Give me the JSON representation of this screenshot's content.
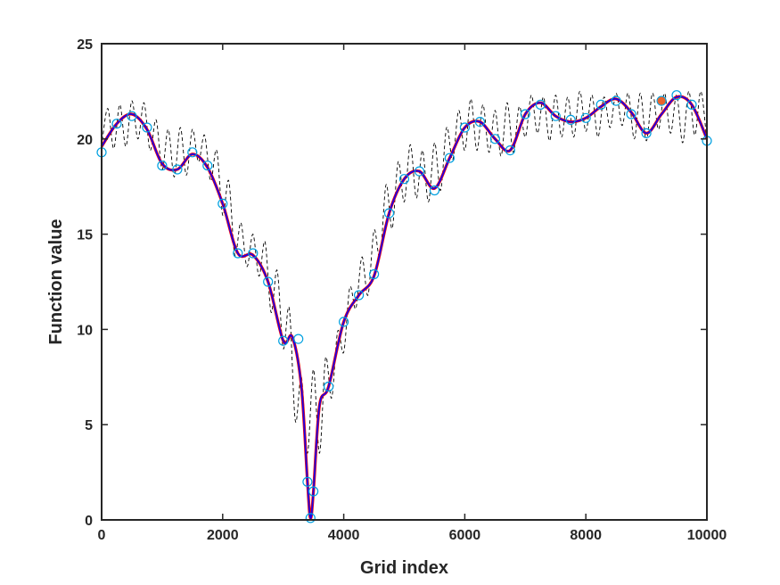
{
  "chart_data": {
    "type": "line",
    "title": "",
    "xlabel": "Grid index",
    "ylabel": "Function value",
    "xlim": [
      0,
      10000
    ],
    "ylim": [
      0,
      25
    ],
    "xticks": [
      0,
      2000,
      4000,
      6000,
      8000,
      10000
    ],
    "yticks": [
      0,
      5,
      10,
      15,
      20,
      25
    ],
    "grid": false,
    "legend": "none",
    "series": [
      {
        "kind": "dashed-line",
        "color": "#000000",
        "x": [
          0,
          100,
          200,
          300,
          400,
          500,
          600,
          700,
          800,
          900,
          1000,
          1100,
          1200,
          1300,
          1400,
          1500,
          1600,
          1700,
          1800,
          1900,
          2000,
          2100,
          2200,
          2300,
          2400,
          2500,
          2600,
          2700,
          2800,
          2900,
          3000,
          3100,
          3200,
          3300,
          3400,
          3500,
          3600,
          3700,
          3800,
          3900,
          4000,
          4100,
          4200,
          4300,
          4400,
          4500,
          4600,
          4700,
          4800,
          4900,
          5000,
          5100,
          5200,
          5300,
          5400,
          5500,
          5600,
          5700,
          5800,
          5900,
          6000,
          6100,
          6200,
          6300,
          6400,
          6500,
          6600,
          6700,
          6800,
          6900,
          7000,
          7100,
          7200,
          7300,
          7400,
          7500,
          7600,
          7700,
          7800,
          7900,
          8000,
          8100,
          8200,
          8300,
          8400,
          8500,
          8600,
          8700,
          8800,
          8900,
          9000,
          9100,
          9200,
          9300,
          9400,
          9500,
          9600,
          9700,
          9800,
          9900,
          10000
        ],
        "y": [
          19.6,
          21.6,
          19.5,
          21.8,
          19.6,
          22.0,
          20.0,
          21.9,
          19.4,
          21.0,
          18.4,
          20.5,
          18.0,
          20.6,
          18.1,
          20.5,
          18.8,
          20.2,
          17.8,
          19.4,
          16.0,
          17.8,
          13.9,
          15.6,
          13.3,
          15.0,
          12.8,
          14.6,
          10.9,
          13.1,
          9.0,
          11.1,
          5.2,
          7.5,
          3.5,
          7.9,
          3.5,
          8.5,
          6.4,
          9.9,
          8.8,
          12.2,
          11.1,
          13.8,
          11.8,
          15.2,
          13.8,
          17.6,
          15.3,
          18.8,
          16.7,
          19.7,
          16.9,
          19.4,
          16.7,
          19.8,
          17.3,
          20.6,
          18.9,
          21.5,
          19.4,
          22.1,
          19.4,
          21.8,
          19.3,
          21.5,
          19.1,
          21.9,
          19.3,
          21.7,
          20.1,
          22.3,
          20.3,
          22.2,
          19.9,
          22.3,
          20.1,
          22.2,
          20.1,
          22.5,
          20.4,
          22.3,
          20.1,
          22.2,
          20.6,
          22.4,
          20.7,
          22.4,
          20.0,
          22.4,
          19.9,
          22.4,
          20.5,
          22.4,
          20.3,
          22.3,
          19.8,
          22.5,
          20.2,
          22.5,
          19.8
        ]
      },
      {
        "kind": "smooth-line-red",
        "color": "#ff0000",
        "x": [
          0,
          250,
          500,
          750,
          1000,
          1250,
          1500,
          1750,
          2000,
          2250,
          2500,
          2750,
          3000,
          3150,
          3300,
          3400,
          3450,
          3500,
          3600,
          3750,
          4000,
          4250,
          4500,
          4750,
          5000,
          5250,
          5500,
          5750,
          6000,
          6250,
          6500,
          6750,
          7000,
          7250,
          7500,
          7750,
          8000,
          8250,
          8500,
          8750,
          9000,
          9250,
          9500,
          9750,
          10000
        ],
        "y": [
          19.6,
          20.8,
          21.3,
          20.5,
          18.7,
          18.4,
          19.2,
          18.5,
          16.6,
          14.0,
          13.9,
          12.5,
          9.4,
          9.6,
          7.0,
          2.0,
          0.1,
          1.5,
          6.0,
          7.0,
          10.4,
          11.8,
          12.8,
          16.1,
          17.9,
          18.3,
          17.4,
          19.0,
          20.6,
          20.9,
          20.0,
          19.4,
          21.3,
          21.9,
          21.2,
          20.9,
          21.1,
          21.7,
          22.1,
          21.4,
          20.3,
          21.3,
          22.2,
          21.8,
          20.0
        ]
      },
      {
        "kind": "smooth-line-blue",
        "color": "#0000ff",
        "x": [
          0,
          250,
          500,
          750,
          1000,
          1250,
          1500,
          1750,
          2000,
          2250,
          2500,
          2750,
          3000,
          3150,
          3300,
          3400,
          3450,
          3500,
          3600,
          3750,
          4000,
          4250,
          4500,
          4750,
          5000,
          5250,
          5500,
          5750,
          6000,
          6250,
          6500,
          6750,
          7000,
          7250,
          7500,
          7750,
          8000,
          8250,
          8500,
          8750,
          9000,
          9250,
          9500,
          9750,
          10000
        ],
        "y": [
          19.6,
          20.8,
          21.3,
          20.5,
          18.7,
          18.4,
          19.2,
          18.5,
          16.6,
          14.0,
          13.9,
          12.5,
          9.4,
          9.6,
          7.0,
          2.0,
          0.1,
          1.5,
          6.0,
          7.0,
          10.4,
          11.8,
          12.8,
          16.1,
          17.9,
          18.3,
          17.4,
          19.0,
          20.6,
          20.9,
          20.0,
          19.4,
          21.3,
          21.9,
          21.2,
          20.9,
          21.1,
          21.7,
          22.1,
          21.4,
          20.3,
          21.3,
          22.2,
          21.8,
          20.0
        ]
      },
      {
        "kind": "circle-markers",
        "color": "#00a0e0",
        "x": [
          0,
          250,
          500,
          750,
          1000,
          1250,
          1500,
          1750,
          2000,
          2250,
          2500,
          2750,
          3000,
          3250,
          3400,
          3450,
          3500,
          3750,
          4000,
          4250,
          4500,
          4750,
          5000,
          5250,
          5500,
          5750,
          6000,
          6250,
          6500,
          6750,
          7000,
          7250,
          7500,
          7750,
          8000,
          8250,
          8500,
          8750,
          9000,
          9250,
          9500,
          9750,
          10000
        ],
        "y": [
          19.3,
          20.8,
          21.2,
          20.6,
          18.6,
          18.4,
          19.3,
          18.6,
          16.6,
          14.0,
          14.0,
          12.5,
          9.4,
          9.5,
          2.0,
          0.1,
          1.5,
          7.0,
          10.4,
          11.8,
          12.9,
          16.1,
          17.9,
          18.3,
          17.3,
          19.0,
          20.6,
          20.9,
          20.0,
          19.4,
          21.3,
          21.8,
          21.2,
          21.0,
          21.1,
          21.8,
          22.0,
          21.3,
          20.3,
          22.0,
          22.3,
          21.8,
          19.9
        ]
      },
      {
        "kind": "highlight-point",
        "color": "#e8632b",
        "x": [
          9250
        ],
        "y": [
          22.0
        ]
      }
    ]
  }
}
